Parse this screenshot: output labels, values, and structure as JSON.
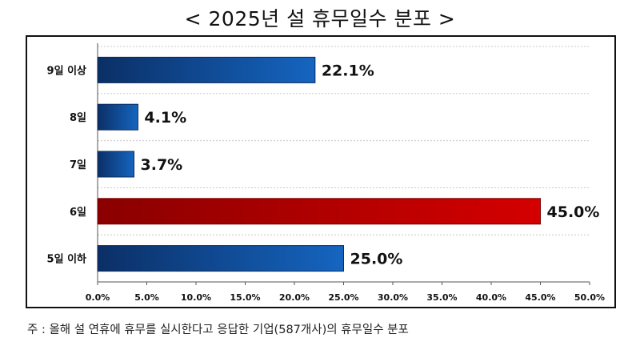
{
  "title": "< 2025년 설 휴무일수 분포 >",
  "note": "주 : 올해 설 연휴에 휴무를 실시한다고 응답한 기업(587개사)의 휴무일수 분포",
  "colors": {
    "blue": "#1565c0",
    "red": "#d50000"
  },
  "chart_data": {
    "type": "bar",
    "orientation": "horizontal",
    "categories": [
      "9일 이상",
      "8일",
      "7일",
      "6일",
      "5일 이하"
    ],
    "values": [
      22.1,
      4.1,
      3.7,
      45.0,
      25.0
    ],
    "value_labels": [
      "22.1%",
      "4.1%",
      "3.7%",
      "45.0%",
      "25.0%"
    ],
    "highlight": "6일",
    "xlim": [
      0,
      50
    ],
    "xticks": [
      "0.0%",
      "5.0%",
      "10.0%",
      "15.0%",
      "20.0%",
      "25.0%",
      "30.0%",
      "35.0%",
      "40.0%",
      "45.0%",
      "50.0%"
    ],
    "grid": true,
    "xlabel": "",
    "ylabel": ""
  }
}
